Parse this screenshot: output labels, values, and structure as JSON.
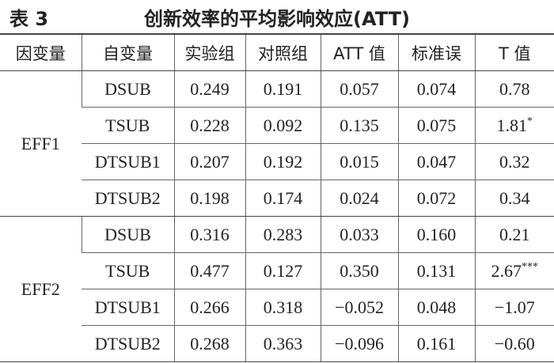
{
  "header": {
    "label": "表 3",
    "title": "创新效率的平均影响效应(ATT)"
  },
  "table": {
    "columns": [
      "因变量",
      "自变量",
      "实验组",
      "对照组",
      "ATT 值",
      "标准误",
      "T 值"
    ],
    "groups": [
      {
        "name": "EFF1",
        "rows": [
          {
            "variable": "DSUB",
            "values": [
              "0.249",
              "0.191",
              "0.057",
              "0.074",
              "0.78"
            ]
          },
          {
            "variable": "TSUB",
            "values": [
              "0.228",
              "0.092",
              "0.135",
              "0.075",
              "1.81"
            ],
            "significance": "*"
          },
          {
            "variable": "DTSUB1",
            "values": [
              "0.207",
              "0.192",
              "0.015",
              "0.047",
              "0.32"
            ]
          },
          {
            "variable": "DTSUB2",
            "values": [
              "0.198",
              "0.174",
              "0.024",
              "0.072",
              "0.34"
            ]
          }
        ]
      },
      {
        "name": "EFF2",
        "rows": [
          {
            "variable": "DSUB",
            "values": [
              "0.316",
              "0.283",
              "0.033",
              "0.160",
              "0.21"
            ]
          },
          {
            "variable": "TSUB",
            "values": [
              "0.477",
              "0.127",
              "0.350",
              "0.131",
              "2.67"
            ],
            "significance": "***"
          },
          {
            "variable": "DTSUB1",
            "values": [
              "0.266",
              "0.318",
              "−0.052",
              "0.048",
              "−1.07"
            ]
          },
          {
            "variable": "DTSUB2",
            "values": [
              "0.268",
              "0.363",
              "−0.096",
              "0.161",
              "−0.60"
            ]
          }
        ]
      }
    ]
  }
}
